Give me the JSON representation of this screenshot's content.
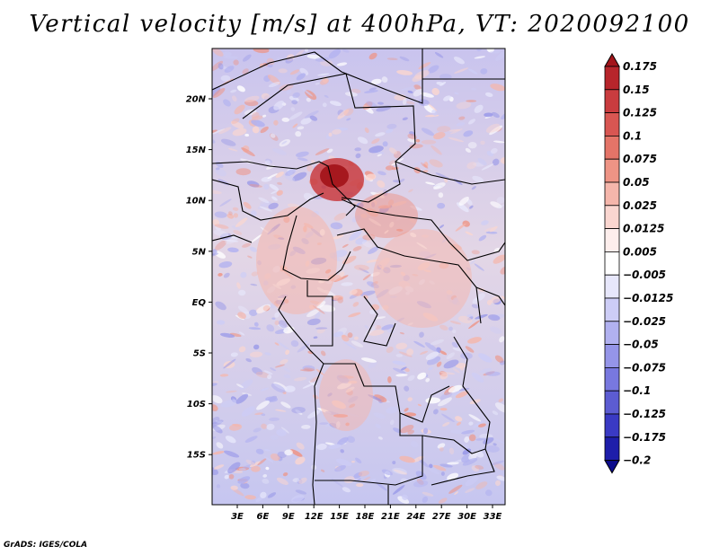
{
  "title": "Vertical velocity [m/s] at 400hPa, VT: 2020092100",
  "credit": "GrADS: IGES/COLA",
  "map": {
    "lat_labels": [
      "20N",
      "15N",
      "10N",
      "5N",
      "EQ",
      "5S",
      "10S",
      "15S"
    ],
    "lon_labels": [
      "3E",
      "6E",
      "9E",
      "12E",
      "15E",
      "18E",
      "21E",
      "24E",
      "27E",
      "30E",
      "33E"
    ]
  },
  "colorbar": {
    "labels": [
      "0.175",
      "0.15",
      "0.125",
      "0.1",
      "0.075",
      "0.05",
      "0.025",
      "0.0125",
      "0.005",
      "−0.005",
      "−0.0125",
      "−0.025",
      "−0.05",
      "−0.075",
      "−0.1",
      "−0.125",
      "−0.175",
      "−0.2"
    ],
    "colors": [
      "#a3151b",
      "#b7252b",
      "#c93c3f",
      "#d85652",
      "#e47468",
      "#ee9485",
      "#f5b6ab",
      "#fad6d0",
      "#fdeeec",
      "#ffffff",
      "#e7e7fb",
      "#cdcdf6",
      "#b1b1f0",
      "#9595e8",
      "#7878df",
      "#5c5cd2",
      "#3a3ac4",
      "#1e1eaa",
      "#0c0c8c"
    ]
  }
}
